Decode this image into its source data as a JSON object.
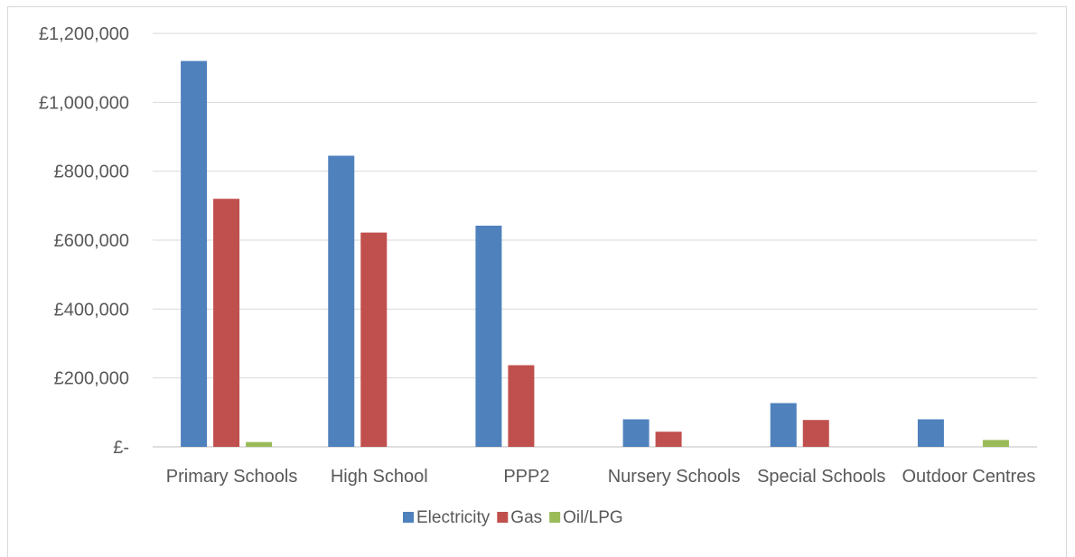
{
  "chart_data": {
    "type": "bar",
    "title": "",
    "xlabel": "",
    "ylabel": "",
    "categories": [
      "Primary Schools",
      "High School",
      "PPP2",
      "Nursery Schools",
      "Special Schools",
      "Outdoor Centres"
    ],
    "series": [
      {
        "name": "Electricity",
        "color": "#4f81bd",
        "values": [
          1120000,
          845000,
          642000,
          80000,
          127000,
          80000
        ]
      },
      {
        "name": "Gas",
        "color": "#c0504d",
        "values": [
          720000,
          622000,
          237000,
          44000,
          78000,
          0
        ]
      },
      {
        "name": "Oil/LPG",
        "color": "#9bbb59",
        "values": [
          14000,
          0,
          0,
          0,
          0,
          20000
        ]
      }
    ],
    "y_ticks": [
      0,
      200000,
      400000,
      600000,
      800000,
      1000000,
      1200000
    ],
    "y_tick_labels": [
      "£-",
      "£200,000",
      "£400,000",
      "£600,000",
      "£800,000",
      "£1,000,000",
      "£1,200,000"
    ],
    "ylim": [
      0,
      1200000
    ],
    "grid": true,
    "legend_position": "bottom"
  }
}
